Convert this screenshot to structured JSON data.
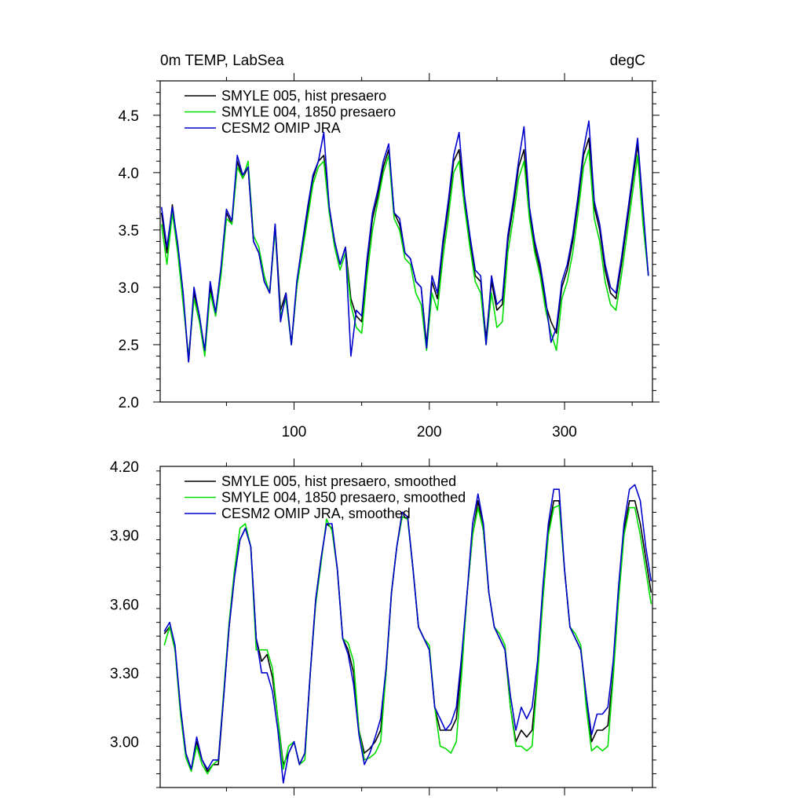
{
  "chart_data": [
    {
      "type": "line",
      "title_left": "0m TEMP, LabSea",
      "title_right": "degC",
      "xlim": [
        1,
        365
      ],
      "ylim": [
        2.0,
        4.8
      ],
      "x_ticks": [
        100,
        200,
        300
      ],
      "y_ticks": [
        2.0,
        2.5,
        3.0,
        3.5,
        4.0,
        4.5
      ],
      "y_tick_labels": [
        "2.0",
        "2.5",
        "3.0",
        "3.5",
        "4.0",
        "4.5"
      ],
      "legend": [
        "SMYLE 005, hist presaero",
        "SMYLE 004, 1850 presaero",
        "CESM2 OMIP JRA"
      ],
      "legend_position": "top-left",
      "series_colors": [
        "#000000",
        "#00dd00",
        "#0000cc"
      ],
      "x": [
        2,
        6,
        10,
        14,
        18,
        22,
        26,
        30,
        34,
        38,
        42,
        46,
        50,
        54,
        58,
        62,
        66,
        70,
        74,
        78,
        82,
        86,
        90,
        94,
        98,
        102,
        106,
        110,
        114,
        118,
        122,
        126,
        130,
        134,
        138,
        142,
        146,
        150,
        154,
        158,
        162,
        166,
        170,
        174,
        178,
        182,
        186,
        190,
        194,
        198,
        202,
        206,
        210,
        214,
        218,
        222,
        226,
        230,
        234,
        238,
        242,
        246,
        250,
        254,
        258,
        262,
        266,
        270,
        274,
        278,
        282,
        286,
        290,
        294,
        298,
        302,
        306,
        310,
        314,
        318,
        322,
        326,
        330,
        334,
        338,
        342,
        346,
        350,
        354,
        358,
        362
      ],
      "series": [
        {
          "values": [
            3.65,
            3.3,
            3.72,
            3.35,
            2.9,
            2.35,
            2.95,
            2.75,
            2.42,
            3.0,
            2.75,
            3.15,
            3.65,
            3.55,
            4.1,
            3.95,
            4.05,
            3.4,
            3.3,
            3.05,
            2.95,
            3.55,
            2.8,
            2.95,
            2.5,
            3.0,
            3.35,
            3.65,
            3.95,
            4.1,
            4.15,
            3.7,
            3.4,
            3.2,
            3.35,
            2.9,
            2.75,
            2.7,
            3.2,
            3.6,
            3.8,
            4.05,
            4.2,
            3.65,
            3.55,
            3.3,
            3.25,
            3.05,
            3.0,
            2.5,
            3.05,
            2.9,
            3.35,
            3.7,
            4.1,
            4.2,
            3.75,
            3.4,
            3.1,
            3.05,
            2.55,
            3.05,
            2.8,
            2.85,
            3.4,
            3.7,
            4.05,
            4.2,
            3.65,
            3.35,
            3.15,
            2.85,
            2.7,
            2.6,
            3.0,
            3.15,
            3.4,
            3.75,
            4.15,
            4.3,
            3.7,
            3.5,
            3.15,
            2.95,
            2.9,
            3.2,
            3.55,
            3.9,
            4.25,
            3.65,
            3.1
          ]
        },
        {
          "values": [
            3.55,
            3.2,
            3.65,
            3.3,
            2.85,
            2.4,
            2.9,
            2.7,
            2.4,
            2.95,
            2.75,
            3.1,
            3.6,
            3.55,
            4.05,
            3.95,
            4.1,
            3.45,
            3.35,
            3.1,
            2.95,
            3.5,
            2.75,
            2.9,
            2.5,
            3.0,
            3.3,
            3.6,
            3.9,
            4.05,
            4.1,
            3.65,
            3.35,
            3.15,
            3.3,
            2.85,
            2.65,
            2.6,
            3.1,
            3.5,
            3.75,
            4.0,
            4.15,
            3.6,
            3.5,
            3.25,
            3.2,
            2.95,
            2.85,
            2.45,
            2.95,
            2.8,
            3.25,
            3.6,
            4.0,
            4.1,
            3.7,
            3.35,
            3.05,
            2.95,
            2.5,
            2.95,
            2.65,
            2.7,
            3.3,
            3.6,
            3.95,
            4.1,
            3.6,
            3.3,
            3.1,
            2.8,
            2.6,
            2.45,
            2.9,
            3.05,
            3.3,
            3.65,
            4.05,
            4.2,
            3.6,
            3.4,
            3.05,
            2.85,
            2.8,
            3.1,
            3.45,
            3.8,
            4.15,
            3.55,
            3.1
          ]
        },
        {
          "values": [
            3.7,
            3.35,
            3.7,
            3.38,
            2.95,
            2.35,
            3.0,
            2.75,
            2.45,
            3.05,
            2.78,
            3.18,
            3.68,
            3.58,
            4.15,
            3.98,
            4.05,
            3.4,
            3.3,
            3.05,
            2.95,
            3.55,
            2.7,
            2.95,
            2.5,
            3.05,
            3.38,
            3.7,
            3.98,
            4.1,
            4.35,
            3.7,
            3.4,
            3.2,
            3.35,
            2.4,
            2.8,
            2.75,
            3.25,
            3.65,
            3.85,
            4.1,
            4.25,
            3.65,
            3.6,
            3.3,
            3.25,
            3.05,
            3.0,
            2.47,
            3.1,
            2.95,
            3.4,
            3.75,
            4.15,
            4.35,
            3.8,
            3.45,
            3.15,
            3.1,
            2.5,
            3.1,
            2.85,
            2.9,
            3.45,
            3.75,
            4.1,
            4.4,
            3.7,
            3.4,
            3.2,
            2.9,
            2.52,
            2.65,
            3.05,
            3.2,
            3.45,
            3.8,
            4.2,
            4.45,
            3.75,
            3.55,
            3.2,
            3.0,
            2.95,
            3.25,
            3.6,
            3.95,
            4.3,
            3.7,
            3.1
          ]
        }
      ]
    },
    {
      "type": "line",
      "xlim": [
        1,
        365
      ],
      "ylim": [
        2.8,
        4.2
      ],
      "x_ticks": [
        100,
        200,
        300
      ],
      "y_ticks": [
        3.0,
        3.3,
        3.6,
        3.9,
        4.2
      ],
      "y_tick_labels": [
        "3.00",
        "3.30",
        "3.60",
        "3.90",
        "4.20"
      ],
      "legend": [
        "SMYLE 005, hist presaero, smoothed",
        "SMYLE 004, 1850 presaero, smoothed",
        "CESM2 OMIP JRA, smoothed"
      ],
      "legend_position": "top-left",
      "series_colors": [
        "#000000",
        "#00dd00",
        "#0000cc"
      ],
      "x": [
        4,
        8,
        12,
        16,
        20,
        24,
        28,
        32,
        36,
        40,
        44,
        48,
        52,
        56,
        60,
        64,
        68,
        72,
        76,
        80,
        84,
        88,
        92,
        96,
        100,
        104,
        108,
        112,
        116,
        120,
        124,
        128,
        132,
        136,
        140,
        144,
        148,
        152,
        156,
        160,
        164,
        168,
        172,
        176,
        180,
        184,
        188,
        192,
        196,
        200,
        204,
        208,
        212,
        216,
        220,
        224,
        228,
        232,
        236,
        240,
        244,
        248,
        252,
        256,
        260,
        264,
        268,
        272,
        276,
        280,
        284,
        288,
        292,
        296,
        300,
        304,
        308,
        312,
        316,
        320,
        324,
        328,
        332,
        336,
        340,
        344,
        348,
        352,
        356,
        360,
        364
      ],
      "series": [
        {
          "values": [
            3.47,
            3.5,
            3.4,
            3.15,
            2.95,
            2.88,
            3.0,
            2.92,
            2.87,
            2.9,
            2.9,
            3.2,
            3.5,
            3.72,
            3.88,
            3.93,
            3.85,
            3.45,
            3.35,
            3.38,
            3.28,
            3.1,
            2.9,
            2.95,
            3.0,
            2.9,
            2.95,
            3.3,
            3.62,
            3.8,
            3.95,
            3.93,
            3.75,
            3.45,
            3.4,
            3.3,
            3.05,
            2.95,
            2.97,
            3.0,
            3.05,
            3.3,
            3.65,
            3.85,
            4.0,
            3.98,
            3.75,
            3.5,
            3.45,
            3.4,
            3.15,
            3.05,
            3.05,
            3.05,
            3.1,
            3.35,
            3.65,
            3.9,
            4.05,
            3.92,
            3.65,
            3.5,
            3.45,
            3.4,
            3.15,
            3.0,
            3.05,
            3.02,
            3.05,
            3.3,
            3.65,
            3.92,
            4.05,
            4.05,
            3.75,
            3.5,
            3.45,
            3.4,
            3.2,
            3.0,
            3.05,
            3.05,
            3.07,
            3.3,
            3.65,
            3.92,
            4.05,
            4.05,
            3.95,
            3.8,
            3.65
          ]
        },
        {
          "values": [
            3.42,
            3.5,
            3.4,
            3.12,
            2.93,
            2.87,
            2.98,
            2.9,
            2.86,
            2.9,
            2.92,
            3.22,
            3.52,
            3.75,
            3.93,
            3.95,
            3.85,
            3.4,
            3.4,
            3.4,
            3.32,
            3.1,
            2.88,
            2.98,
            3.0,
            2.9,
            2.92,
            3.3,
            3.6,
            3.78,
            3.97,
            3.92,
            3.75,
            3.45,
            3.43,
            3.35,
            3.05,
            2.92,
            2.93,
            2.95,
            3.0,
            3.3,
            3.65,
            3.85,
            3.98,
            3.97,
            3.75,
            3.5,
            3.45,
            3.42,
            3.15,
            2.98,
            2.97,
            2.95,
            3.0,
            3.3,
            3.65,
            3.9,
            4.02,
            3.92,
            3.65,
            3.5,
            3.47,
            3.42,
            3.15,
            2.98,
            2.98,
            2.96,
            2.98,
            3.28,
            3.62,
            3.9,
            4.02,
            4.03,
            3.75,
            3.5,
            3.47,
            3.42,
            3.15,
            2.96,
            2.98,
            2.96,
            2.98,
            3.28,
            3.62,
            3.9,
            4.02,
            4.02,
            3.9,
            3.75,
            3.6
          ]
        },
        {
          "values": [
            3.48,
            3.52,
            3.42,
            3.15,
            2.95,
            2.88,
            3.02,
            2.92,
            2.88,
            2.92,
            2.92,
            3.2,
            3.5,
            3.72,
            3.88,
            3.93,
            3.85,
            3.45,
            3.3,
            3.3,
            3.22,
            3.05,
            2.82,
            2.95,
            3.0,
            2.9,
            2.95,
            3.3,
            3.62,
            3.8,
            3.95,
            3.95,
            3.75,
            3.45,
            3.38,
            3.25,
            3.03,
            2.9,
            2.95,
            3.02,
            3.1,
            3.32,
            3.65,
            3.85,
            4.0,
            3.98,
            3.75,
            3.5,
            3.45,
            3.4,
            3.15,
            3.1,
            3.05,
            3.08,
            3.15,
            3.38,
            3.65,
            3.95,
            4.08,
            3.95,
            3.65,
            3.5,
            3.45,
            3.4,
            3.2,
            3.05,
            3.15,
            3.1,
            3.15,
            3.35,
            3.68,
            3.95,
            4.1,
            4.1,
            3.75,
            3.5,
            3.45,
            3.4,
            3.2,
            3.03,
            3.12,
            3.12,
            3.15,
            3.35,
            3.68,
            3.95,
            4.1,
            4.12,
            4.05,
            3.85,
            3.7
          ]
        }
      ]
    }
  ]
}
